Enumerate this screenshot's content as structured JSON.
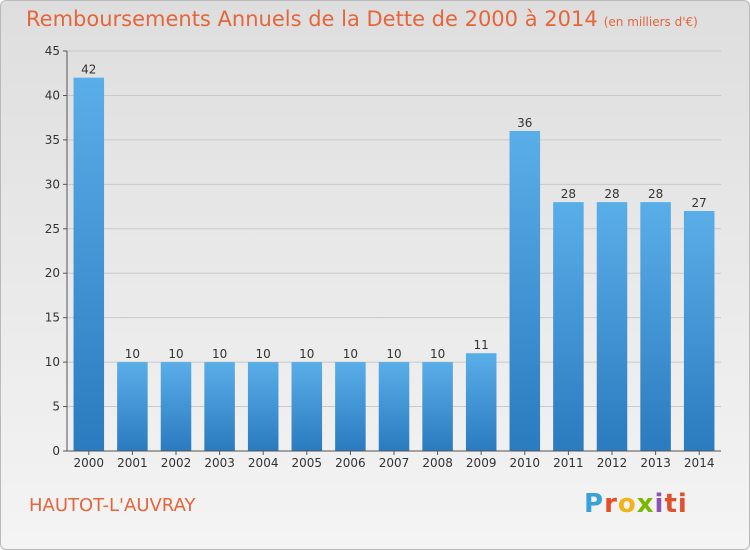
{
  "header": {
    "title": "Remboursements Annuels de la Dette de 2000 à 2014",
    "unit": "(en milliers d'€)"
  },
  "footer": {
    "commune": "HAUTOT-L'AUVRAY",
    "logo_letters": [
      "P",
      "r",
      "o",
      "x",
      "i",
      "t",
      "i"
    ]
  },
  "colors": {
    "title": "#e4663a",
    "bar_light": "#5aaee8",
    "bar_dark": "#2a7bbf",
    "grid": "#c9c9c9",
    "axis": "#555555"
  },
  "chart_data": {
    "type": "bar",
    "title": "Remboursements Annuels de la Dette de 2000 à 2014",
    "subtitle": "(en milliers d'€)",
    "xlabel": "",
    "ylabel": "",
    "categories": [
      "2000",
      "2001",
      "2002",
      "2003",
      "2004",
      "2005",
      "2006",
      "2007",
      "2008",
      "2009",
      "2010",
      "2011",
      "2012",
      "2013",
      "2014"
    ],
    "values": [
      42,
      10,
      10,
      10,
      10,
      10,
      10,
      10,
      10,
      11,
      36,
      28,
      28,
      28,
      27
    ],
    "ylim": [
      0,
      45
    ],
    "yticks": [
      0,
      5,
      10,
      15,
      20,
      25,
      30,
      35,
      40,
      45
    ],
    "grid": true,
    "legend": "none"
  }
}
